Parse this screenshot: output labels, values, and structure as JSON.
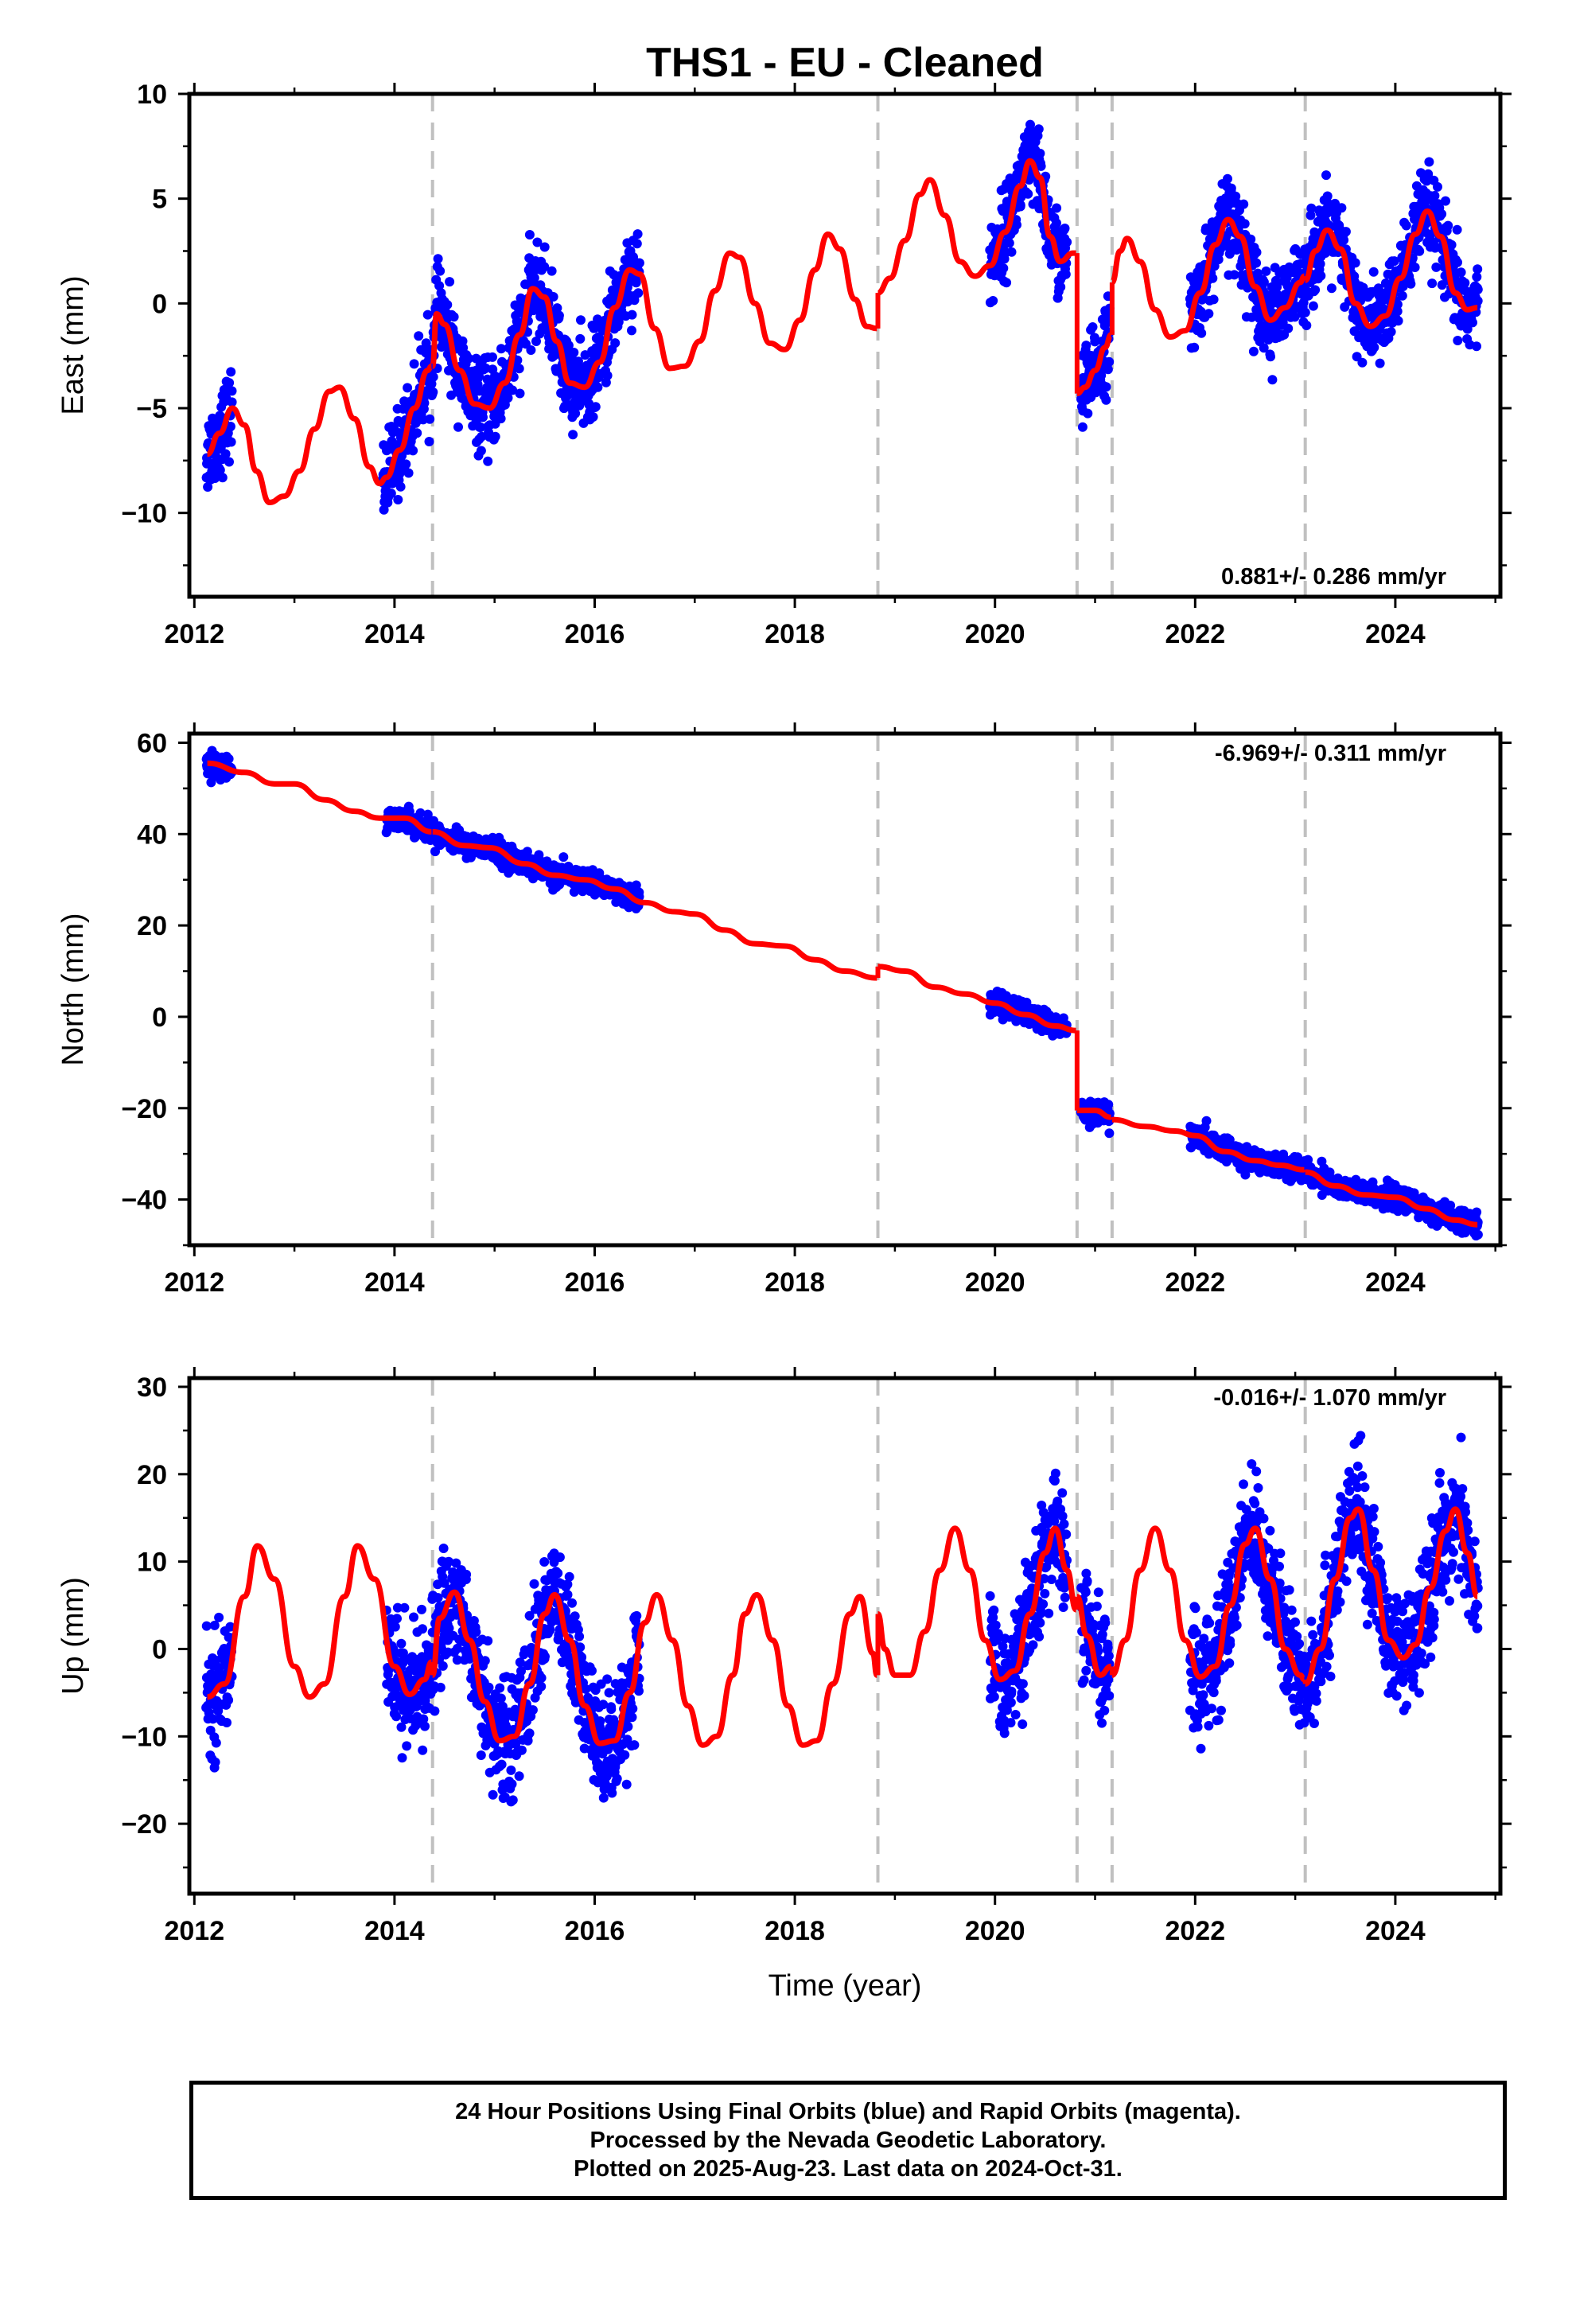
{
  "page": {
    "title": "THS1  - EU - Cleaned",
    "xlabel": "Time (year)"
  },
  "footer": {
    "line1": "24 Hour Positions Using Final Orbits (blue) and Rapid Orbits (magenta).",
    "line2": "Processed by the Nevada Geodetic Laboratory.",
    "line3": "Plotted on 2025-Aug-23. Last data on 2024-Oct-31."
  },
  "colors": {
    "final_orbits": "#0000ff",
    "model": "#ff0000",
    "equipment_change": "#c0c0c0"
  },
  "chart_data": [
    {
      "type": "scatter",
      "name": "east",
      "ylabel": "East (mm)",
      "xlim": [
        2011.95,
        2025.05
      ],
      "ylim": [
        -14,
        10
      ],
      "yticks": [
        -10,
        -5,
        0,
        5,
        10
      ],
      "xticks": [
        2012,
        2014,
        2016,
        2018,
        2020,
        2022,
        2024
      ],
      "rate_text": "0.881+/- 0.286 mm/yr",
      "rate_position": "bottom-right",
      "grid": false,
      "breaks": [
        2014.38,
        2018.83,
        2020.82,
        2021.17,
        2023.1
      ],
      "data_segments": [
        {
          "x": [
            2012.12,
            2012.38
          ],
          "trend": [
            -7.5,
            -5.0
          ],
          "amp": 2.8
        },
        {
          "x": [
            2013.88,
            2016.45
          ],
          "trend": [
            -6.0,
            -1.5
          ],
          "amp": 3.4
        },
        {
          "x": [
            2019.95,
            2020.72
          ],
          "trend": [
            3.8,
            3.0
          ],
          "amp": 3.0
        },
        {
          "x": [
            2020.86,
            2021.15
          ],
          "trend": [
            -4.5,
            -3.0
          ],
          "amp": 1.0
        },
        {
          "x": [
            2021.95,
            2024.83
          ],
          "trend": [
            1.0,
            1.5
          ],
          "amp": 2.4
        }
      ],
      "model_points": [
        [
          2012.13,
          -7.2
        ],
        [
          2012.25,
          -6.2
        ],
        [
          2012.38,
          -5.0
        ],
        [
          2012.5,
          -5.8
        ],
        [
          2012.62,
          -8.0
        ],
        [
          2012.75,
          -9.5
        ],
        [
          2012.9,
          -9.2
        ],
        [
          2013.05,
          -8.0
        ],
        [
          2013.2,
          -6.0
        ],
        [
          2013.35,
          -4.2
        ],
        [
          2013.45,
          -4.0
        ],
        [
          2013.6,
          -5.5
        ],
        [
          2013.75,
          -7.8
        ],
        [
          2013.85,
          -8.6
        ],
        [
          2013.92,
          -8.3
        ],
        [
          2014.05,
          -7.0
        ],
        [
          2014.2,
          -5.0
        ],
        [
          2014.33,
          -3.2
        ],
        [
          2014.37,
          -3.0
        ],
        [
          2014.38,
          -3.0
        ],
        [
          2014.42,
          -0.5
        ],
        [
          2014.5,
          -1.0
        ],
        [
          2014.65,
          -3.2
        ],
        [
          2014.8,
          -4.8
        ],
        [
          2014.95,
          -5.0
        ],
        [
          2015.1,
          -3.8
        ],
        [
          2015.25,
          -1.5
        ],
        [
          2015.38,
          0.7
        ],
        [
          2015.5,
          0.3
        ],
        [
          2015.62,
          -1.8
        ],
        [
          2015.75,
          -3.8
        ],
        [
          2015.9,
          -4.0
        ],
        [
          2016.05,
          -2.8
        ],
        [
          2016.2,
          -0.2
        ],
        [
          2016.35,
          1.6
        ],
        [
          2016.45,
          1.4
        ],
        [
          2016.6,
          -1.2
        ],
        [
          2016.75,
          -3.1
        ],
        [
          2016.9,
          -3.0
        ],
        [
          2017.05,
          -1.8
        ],
        [
          2017.2,
          0.6
        ],
        [
          2017.35,
          2.4
        ],
        [
          2017.45,
          2.2
        ],
        [
          2017.6,
          0.0
        ],
        [
          2017.75,
          -1.9
        ],
        [
          2017.9,
          -2.2
        ],
        [
          2018.05,
          -0.8
        ],
        [
          2018.2,
          1.6
        ],
        [
          2018.33,
          3.3
        ],
        [
          2018.45,
          2.6
        ],
        [
          2018.6,
          0.2
        ],
        [
          2018.72,
          -1.1
        ],
        [
          2018.82,
          -1.2
        ],
        [
          2018.83,
          0.5
        ],
        [
          2018.95,
          1.2
        ],
        [
          2019.1,
          3.0
        ],
        [
          2019.25,
          5.2
        ],
        [
          2019.35,
          5.9
        ],
        [
          2019.5,
          4.2
        ],
        [
          2019.65,
          2.0
        ],
        [
          2019.8,
          1.3
        ],
        [
          2019.95,
          1.8
        ],
        [
          2020.1,
          3.4
        ],
        [
          2020.25,
          5.6
        ],
        [
          2020.35,
          6.8
        ],
        [
          2020.45,
          6.0
        ],
        [
          2020.55,
          3.2
        ],
        [
          2020.65,
          2.0
        ],
        [
          2020.78,
          2.4
        ],
        [
          2020.81,
          2.4
        ],
        [
          2020.82,
          -4.3
        ],
        [
          2020.9,
          -4.0
        ],
        [
          2021.0,
          -3.2
        ],
        [
          2021.1,
          -2.1
        ],
        [
          2021.16,
          -1.5
        ],
        [
          2021.17,
          1.0
        ],
        [
          2021.25,
          2.5
        ],
        [
          2021.32,
          3.1
        ],
        [
          2021.45,
          2.0
        ],
        [
          2021.6,
          -0.3
        ],
        [
          2021.75,
          -1.6
        ],
        [
          2021.9,
          -1.3
        ],
        [
          2022.05,
          0.5
        ],
        [
          2022.2,
          2.8
        ],
        [
          2022.33,
          4.0
        ],
        [
          2022.45,
          3.2
        ],
        [
          2022.6,
          0.8
        ],
        [
          2022.75,
          -0.8
        ],
        [
          2022.9,
          -0.2
        ],
        [
          2023.05,
          1.0
        ],
        [
          2023.09,
          1.3
        ],
        [
          2023.1,
          1.1
        ],
        [
          2023.2,
          2.5
        ],
        [
          2023.32,
          3.5
        ],
        [
          2023.45,
          2.6
        ],
        [
          2023.6,
          0.0
        ],
        [
          2023.75,
          -1.1
        ],
        [
          2023.9,
          -0.6
        ],
        [
          2024.05,
          1.2
        ],
        [
          2024.2,
          3.3
        ],
        [
          2024.32,
          4.4
        ],
        [
          2024.45,
          3.2
        ],
        [
          2024.6,
          0.5
        ],
        [
          2024.72,
          -0.3
        ],
        [
          2024.82,
          -0.2
        ]
      ]
    },
    {
      "type": "scatter",
      "name": "north",
      "ylabel": "North (mm)",
      "xlim": [
        2011.95,
        2025.05
      ],
      "ylim": [
        -50,
        62
      ],
      "yticks": [
        -40,
        -20,
        0,
        20,
        40,
        60
      ],
      "xticks": [
        2012,
        2014,
        2016,
        2018,
        2020,
        2022,
        2024
      ],
      "rate_text": "-6.969+/- 0.311 mm/yr",
      "rate_position": "top-right",
      "grid": false,
      "breaks": [
        2014.38,
        2018.83,
        2020.82,
        2021.17,
        2023.1
      ],
      "data_segments": [
        {
          "x": [
            2012.12,
            2012.38
          ],
          "trend": [
            55.5,
            53.5
          ],
          "amp": 0.8
        },
        {
          "x": [
            2013.92,
            2016.45
          ],
          "trend": [
            43.5,
            25.5
          ],
          "amp": 1.2
        },
        {
          "x": [
            2019.95,
            2020.72
          ],
          "trend": [
            3.5,
            -1.5
          ],
          "amp": 0.8
        },
        {
          "x": [
            2020.86,
            2021.15
          ],
          "trend": [
            -20.5,
            -22.0
          ],
          "amp": 0.6
        },
        {
          "x": [
            2021.95,
            2024.83
          ],
          "trend": [
            -25.0,
            -45.5
          ],
          "amp": 1.0
        }
      ],
      "model_points": [
        [
          2012.13,
          55.5
        ],
        [
          2012.5,
          53.5
        ],
        [
          2012.8,
          51.0
        ],
        [
          2013.0,
          51.0
        ],
        [
          2013.3,
          47.5
        ],
        [
          2013.6,
          45.0
        ],
        [
          2013.85,
          43.5
        ],
        [
          2014.1,
          43.5
        ],
        [
          2014.37,
          40.5
        ],
        [
          2014.38,
          40.5
        ],
        [
          2014.7,
          37.5
        ],
        [
          2014.95,
          37.0
        ],
        [
          2015.3,
          33.5
        ],
        [
          2015.6,
          31.0
        ],
        [
          2015.9,
          30.0
        ],
        [
          2016.2,
          28.0
        ],
        [
          2016.5,
          25.0
        ],
        [
          2016.8,
          23.0
        ],
        [
          2017.0,
          22.5
        ],
        [
          2017.3,
          19.0
        ],
        [
          2017.6,
          16.0
        ],
        [
          2017.9,
          15.5
        ],
        [
          2018.2,
          12.5
        ],
        [
          2018.5,
          10.0
        ],
        [
          2018.82,
          8.5
        ],
        [
          2018.83,
          11.0
        ],
        [
          2019.1,
          10.0
        ],
        [
          2019.4,
          6.5
        ],
        [
          2019.7,
          5.0
        ],
        [
          2020.0,
          3.0
        ],
        [
          2020.3,
          0.5
        ],
        [
          2020.6,
          -2.0
        ],
        [
          2020.81,
          -3.0
        ],
        [
          2020.82,
          -20.5
        ],
        [
          2021.0,
          -20.5
        ],
        [
          2021.16,
          -22.0
        ],
        [
          2021.17,
          -22.5
        ],
        [
          2021.5,
          -24.0
        ],
        [
          2021.8,
          -25.0
        ],
        [
          2022.0,
          -26.0
        ],
        [
          2022.3,
          -29.5
        ],
        [
          2022.6,
          -31.5
        ],
        [
          2022.85,
          -32.5
        ],
        [
          2023.09,
          -33.5
        ],
        [
          2023.1,
          -34.0
        ],
        [
          2023.4,
          -37.0
        ],
        [
          2023.7,
          -39.0
        ],
        [
          2024.0,
          -39.5
        ],
        [
          2024.3,
          -42.0
        ],
        [
          2024.6,
          -44.5
        ],
        [
          2024.82,
          -45.5
        ]
      ]
    },
    {
      "type": "scatter",
      "name": "up",
      "ylabel": "Up (mm)",
      "xlim": [
        2011.95,
        2025.05
      ],
      "ylim": [
        -28,
        31
      ],
      "yticks": [
        -20,
        -10,
        0,
        10,
        20,
        30
      ],
      "xticks": [
        2012,
        2014,
        2016,
        2018,
        2020,
        2022,
        2024
      ],
      "rate_text": "-0.016+/- 1.070 mm/yr",
      "rate_position": "top-right",
      "grid": false,
      "breaks": [
        2014.38,
        2018.83,
        2020.82,
        2021.17,
        2023.1
      ],
      "data_segments": [
        {
          "x": [
            2012.12,
            2012.38
          ],
          "trend": [
            0.0,
            0.0
          ],
          "amp": 4.0
        },
        {
          "x": [
            2013.92,
            2016.45
          ],
          "trend": [
            0.0,
            -3.0
          ],
          "amp": 7.0
        },
        {
          "x": [
            2019.95,
            2020.72
          ],
          "trend": [
            4.0,
            5.0
          ],
          "amp": 7.0
        },
        {
          "x": [
            2020.86,
            2021.15
          ],
          "trend": [
            2.0,
            2.0
          ],
          "amp": 4.0
        },
        {
          "x": [
            2021.95,
            2024.83
          ],
          "trend": [
            4.0,
            7.0
          ],
          "amp": 8.0
        }
      ],
      "model_points": [
        [
          2012.13,
          -5.5
        ],
        [
          2012.3,
          -4.0
        ],
        [
          2012.5,
          6.0
        ],
        [
          2012.63,
          11.8
        ],
        [
          2012.8,
          8.0
        ],
        [
          2013.0,
          -2.0
        ],
        [
          2013.15,
          -5.5
        ],
        [
          2013.3,
          -4.0
        ],
        [
          2013.5,
          6.0
        ],
        [
          2013.63,
          11.8
        ],
        [
          2013.8,
          8.0
        ],
        [
          2014.0,
          -2.0
        ],
        [
          2014.15,
          -5.2
        ],
        [
          2014.3,
          -3.5
        ],
        [
          2014.37,
          -1.5
        ],
        [
          2014.38,
          -3.0
        ],
        [
          2014.45,
          3.5
        ],
        [
          2014.6,
          6.5
        ],
        [
          2014.75,
          1.0
        ],
        [
          2014.9,
          -6.0
        ],
        [
          2015.05,
          -10.5
        ],
        [
          2015.2,
          -10.0
        ],
        [
          2015.35,
          -4.0
        ],
        [
          2015.5,
          4.0
        ],
        [
          2015.6,
          6.2
        ],
        [
          2015.75,
          1.0
        ],
        [
          2015.9,
          -6.5
        ],
        [
          2016.05,
          -10.8
        ],
        [
          2016.2,
          -10.5
        ],
        [
          2016.35,
          -5.0
        ],
        [
          2016.5,
          3.0
        ],
        [
          2016.62,
          6.2
        ],
        [
          2016.78,
          1.0
        ],
        [
          2016.93,
          -6.5
        ],
        [
          2017.08,
          -11.0
        ],
        [
          2017.22,
          -10.0
        ],
        [
          2017.38,
          -3.0
        ],
        [
          2017.5,
          4.0
        ],
        [
          2017.62,
          6.2
        ],
        [
          2017.78,
          1.0
        ],
        [
          2017.93,
          -6.5
        ],
        [
          2018.08,
          -11.0
        ],
        [
          2018.22,
          -10.5
        ],
        [
          2018.38,
          -4.0
        ],
        [
          2018.55,
          4.0
        ],
        [
          2018.65,
          6.0
        ],
        [
          2018.78,
          -0.5
        ],
        [
          2018.82,
          -3.0
        ],
        [
          2018.83,
          4.0
        ],
        [
          2018.9,
          0.0
        ],
        [
          2019.0,
          -3.0
        ],
        [
          2019.15,
          -3.0
        ],
        [
          2019.3,
          2.0
        ],
        [
          2019.45,
          9.0
        ],
        [
          2019.6,
          13.8
        ],
        [
          2019.75,
          9.0
        ],
        [
          2019.9,
          1.0
        ],
        [
          2020.05,
          -3.5
        ],
        [
          2020.2,
          -2.5
        ],
        [
          2020.35,
          4.0
        ],
        [
          2020.5,
          11.0
        ],
        [
          2020.6,
          13.8
        ],
        [
          2020.72,
          9.0
        ],
        [
          2020.81,
          4.5
        ],
        [
          2020.82,
          6.0
        ],
        [
          2020.92,
          1.5
        ],
        [
          2021.05,
          -3.0
        ],
        [
          2021.16,
          -2.0
        ],
        [
          2021.17,
          -3.0
        ],
        [
          2021.3,
          1.0
        ],
        [
          2021.45,
          9.0
        ],
        [
          2021.6,
          13.8
        ],
        [
          2021.75,
          9.0
        ],
        [
          2021.9,
          1.0
        ],
        [
          2022.05,
          -3.2
        ],
        [
          2022.2,
          -2.0
        ],
        [
          2022.35,
          5.0
        ],
        [
          2022.5,
          12.0
        ],
        [
          2022.6,
          13.8
        ],
        [
          2022.75,
          8.0
        ],
        [
          2022.9,
          0.0
        ],
        [
          2023.05,
          -3.0
        ],
        [
          2023.09,
          -3.5
        ],
        [
          2023.1,
          -4.0
        ],
        [
          2023.25,
          0.0
        ],
        [
          2023.4,
          8.0
        ],
        [
          2023.55,
          15.0
        ],
        [
          2023.63,
          16.0
        ],
        [
          2023.78,
          9.0
        ],
        [
          2023.93,
          1.0
        ],
        [
          2024.08,
          -1.0
        ],
        [
          2024.2,
          0.5
        ],
        [
          2024.35,
          7.0
        ],
        [
          2024.5,
          13.5
        ],
        [
          2024.6,
          16.0
        ],
        [
          2024.72,
          11.0
        ],
        [
          2024.82,
          6.0
        ]
      ]
    }
  ]
}
